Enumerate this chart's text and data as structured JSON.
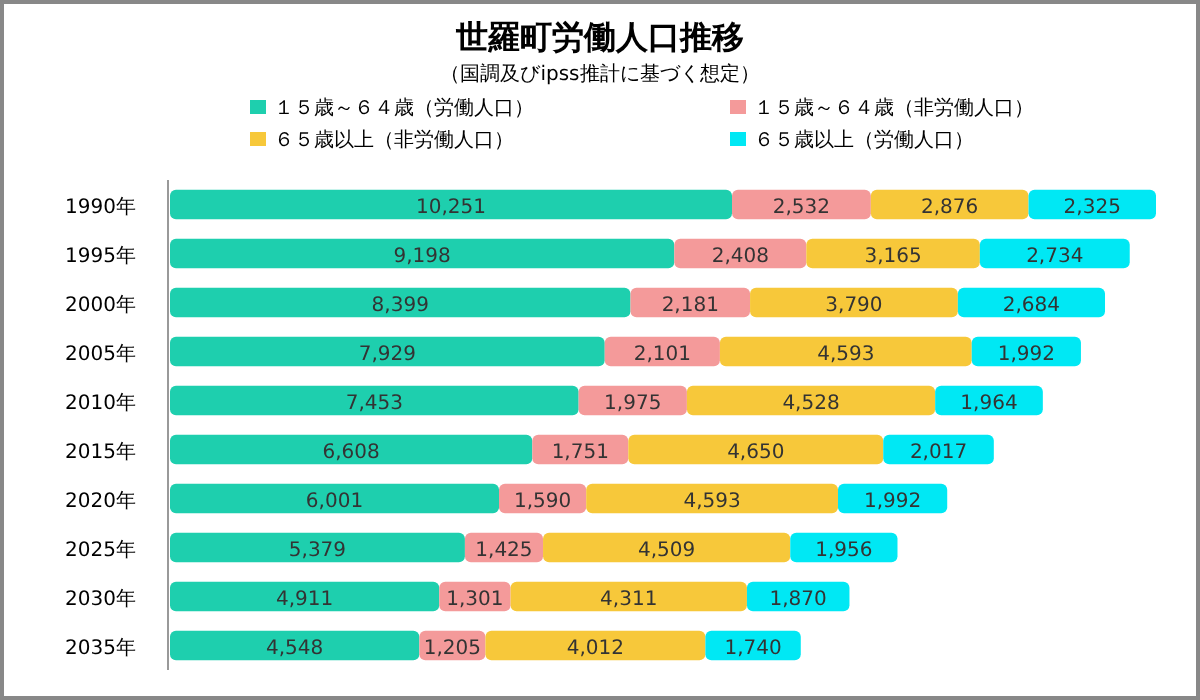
{
  "chart_data": {
    "type": "bar",
    "orientation": "horizontal",
    "stacked": true,
    "legend": "top",
    "title": "世羅町労働人口推移",
    "subtitle": "（国調及びipss推計に基づく想定）",
    "categories": [
      "1990年",
      "1995年",
      "2000年",
      "2005年",
      "2010年",
      "2015年",
      "2020年",
      "2025年",
      "2030年",
      "2035年"
    ],
    "series": [
      {
        "name": "１５歳～６４歳（労働人口）",
        "color": "#1ecfae",
        "values": [
          10251,
          9198,
          8399,
          7929,
          7453,
          6608,
          6001,
          5379,
          4911,
          4548
        ],
        "value_labels": [
          "10,251",
          "9,198",
          "8,399",
          "7,929",
          "7,453",
          "6,608",
          "6,001",
          "5,379",
          "4,911",
          "4,548"
        ]
      },
      {
        "name": "１５歳～６４歳（非労働人口）",
        "color": "#f49a9a",
        "values": [
          2532,
          2408,
          2181,
          2101,
          1975,
          1751,
          1590,
          1425,
          1301,
          1205
        ],
        "value_labels": [
          "2,532",
          "2,408",
          "2,181",
          "2,101",
          "1,975",
          "1,751",
          "1,590",
          "1,425",
          "1,301",
          "1,205"
        ]
      },
      {
        "name": "６５歳以上（非労働人口）",
        "color": "#f7c83a",
        "values": [
          2876,
          3165,
          3790,
          4593,
          4528,
          4650,
          4593,
          4509,
          4311,
          4012
        ],
        "value_labels": [
          "2,876",
          "3,165",
          "3,790",
          "4,593",
          "4,528",
          "4,650",
          "4,593",
          "4,509",
          "4,311",
          "4,012"
        ]
      },
      {
        "name": "６５歳以上（労働人口）",
        "color": "#00e8f4",
        "values": [
          2325,
          2734,
          2684,
          1992,
          1964,
          2017,
          1992,
          1956,
          1870,
          1740
        ],
        "value_labels": [
          "2,325",
          "2,734",
          "2,684",
          "1,992",
          "1,964",
          "2,017",
          "1,992",
          "1,956",
          "1,870",
          "1,740"
        ]
      }
    ]
  }
}
